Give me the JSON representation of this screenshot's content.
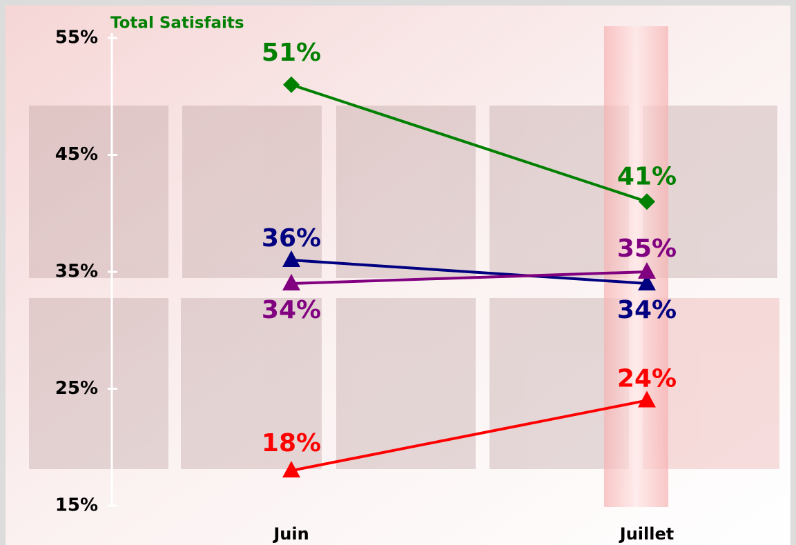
{
  "chart_data": {
    "type": "line",
    "y_label": "Total Satisfaits",
    "categories": [
      "Juin",
      "Juillet"
    ],
    "ylim": [
      15,
      55
    ],
    "yticks": [
      {
        "value": 15,
        "label": "15%"
      },
      {
        "value": 25,
        "label": "25%"
      },
      {
        "value": 35,
        "label": "35%"
      },
      {
        "value": 45,
        "label": "45%"
      },
      {
        "value": 55,
        "label": "55%"
      }
    ],
    "series": [
      {
        "color": "#008000",
        "marker": "diamond",
        "values": [
          51,
          41
        ],
        "value_labels": [
          "51%",
          "41%"
        ]
      },
      {
        "color": "#000080",
        "marker": "triangle",
        "values": [
          36,
          34
        ],
        "value_labels": [
          "36%",
          "34%"
        ]
      },
      {
        "color": "#800080",
        "marker": "triangle",
        "values": [
          34,
          35
        ],
        "value_labels": [
          "34%",
          "35%"
        ]
      },
      {
        "color": "#ff0000",
        "marker": "triangle",
        "values": [
          18,
          24
        ],
        "value_labels": [
          "18%",
          "24%"
        ]
      }
    ]
  }
}
